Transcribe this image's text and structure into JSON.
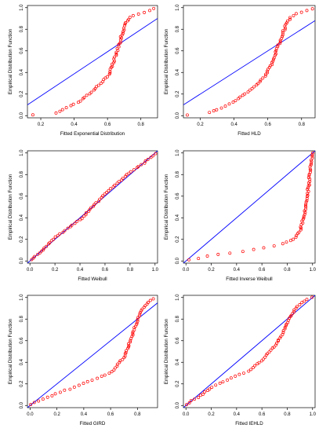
{
  "colors": {
    "points": "#ff0000",
    "line": "#0000ff",
    "axis": "#000000"
  },
  "chart_data": [
    {
      "type": "scatter",
      "xlabel": "Fitted Exponential Distribution",
      "ylabel": "Empirical Distribution Function",
      "xlim": [
        0.12,
        0.9
      ],
      "ylim": [
        -0.02,
        1.02
      ],
      "xticks": [
        0.2,
        0.4,
        0.6,
        0.8
      ],
      "xtick_labels": [
        "0.2",
        "0.4",
        "0.6",
        "0.8"
      ],
      "yticks": [
        0,
        0.2,
        0.4,
        0.6,
        0.8,
        1
      ],
      "ytick_labels": [
        "0.0",
        "0.2",
        "0.4",
        "0.6",
        "0.8",
        "1.0"
      ],
      "line": {
        "x": [
          0.12,
          0.9
        ],
        "y": [
          0.1,
          0.9
        ]
      },
      "curve": [
        [
          0.15,
          0.01
        ],
        [
          0.28,
          0.02
        ],
        [
          0.42,
          0.12
        ],
        [
          0.52,
          0.24
        ],
        [
          0.6,
          0.36
        ],
        [
          0.63,
          0.46
        ],
        [
          0.66,
          0.6
        ],
        [
          0.68,
          0.72
        ],
        [
          0.71,
          0.86
        ],
        [
          0.74,
          0.92
        ],
        [
          0.8,
          0.95
        ],
        [
          0.86,
          0.98
        ],
        [
          0.88,
          0.99
        ]
      ],
      "n_points": 62
    },
    {
      "type": "scatter",
      "xlabel": "Fitted HLD",
      "ylabel": "Empirical Distribution Function",
      "xlim": [
        0.1,
        0.88
      ],
      "ylim": [
        -0.02,
        1.02
      ],
      "xticks": [
        0.2,
        0.4,
        0.6,
        0.8
      ],
      "xtick_labels": [
        "0.2",
        "0.4",
        "0.6",
        "0.8"
      ],
      "yticks": [
        0,
        0.2,
        0.4,
        0.6,
        0.8,
        1
      ],
      "ytick_labels": [
        "0.0",
        "0.2",
        "0.4",
        "0.6",
        "0.8",
        "1.0"
      ],
      "line": {
        "x": [
          0.1,
          0.88
        ],
        "y": [
          0.1,
          0.88
        ]
      },
      "curve": [
        [
          0.12,
          0.01
        ],
        [
          0.25,
          0.02
        ],
        [
          0.4,
          0.13
        ],
        [
          0.5,
          0.24
        ],
        [
          0.58,
          0.36
        ],
        [
          0.62,
          0.46
        ],
        [
          0.65,
          0.6
        ],
        [
          0.68,
          0.72
        ],
        [
          0.71,
          0.86
        ],
        [
          0.74,
          0.92
        ],
        [
          0.78,
          0.95
        ],
        [
          0.84,
          0.98
        ],
        [
          0.87,
          0.99
        ]
      ],
      "n_points": 62
    },
    {
      "type": "scatter",
      "xlabel": "Fitted Weibull",
      "ylabel": "Empirical Distribution Function",
      "xlim": [
        -0.02,
        1.02
      ],
      "ylim": [
        -0.02,
        1.02
      ],
      "xticks": [
        0,
        0.2,
        0.4,
        0.6,
        0.8,
        1
      ],
      "xtick_labels": [
        "0.0",
        "0.2",
        "0.4",
        "0.6",
        "0.8",
        "1.0"
      ],
      "yticks": [
        0,
        0.2,
        0.4,
        0.6,
        0.8,
        1
      ],
      "ytick_labels": [
        "0.0",
        "0.2",
        "0.4",
        "0.6",
        "0.8",
        "1.0"
      ],
      "line": {
        "x": [
          -0.02,
          1.02
        ],
        "y": [
          -0.02,
          1.02
        ]
      },
      "curve": [
        [
          0.01,
          0.01
        ],
        [
          0.1,
          0.1
        ],
        [
          0.2,
          0.22
        ],
        [
          0.3,
          0.3
        ],
        [
          0.42,
          0.4
        ],
        [
          0.5,
          0.5
        ],
        [
          0.6,
          0.62
        ],
        [
          0.7,
          0.72
        ],
        [
          0.8,
          0.82
        ],
        [
          0.9,
          0.9
        ],
        [
          1.0,
          0.99
        ]
      ],
      "n_points": 62
    },
    {
      "type": "scatter",
      "xlabel": "Fitted Inverse Weibull",
      "ylabel": "Empirical Distribution Function",
      "xlim": [
        -0.02,
        1.02
      ],
      "ylim": [
        -0.02,
        1.02
      ],
      "xticks": [
        0,
        0.2,
        0.4,
        0.6,
        0.8,
        1
      ],
      "xtick_labels": [
        "0.0",
        "0.2",
        "0.4",
        "0.6",
        "0.8",
        "1.0"
      ],
      "yticks": [
        0,
        0.2,
        0.4,
        0.6,
        0.8,
        1
      ],
      "ytick_labels": [
        "0.0",
        "0.2",
        "0.4",
        "0.6",
        "0.8",
        "1.0"
      ],
      "line": {
        "x": [
          -0.02,
          1.02
        ],
        "y": [
          -0.02,
          1.02
        ]
      },
      "curve": [
        [
          0.02,
          0.01
        ],
        [
          0.2,
          0.05
        ],
        [
          0.5,
          0.1
        ],
        [
          0.75,
          0.15
        ],
        [
          0.85,
          0.2
        ],
        [
          0.9,
          0.28
        ],
        [
          0.93,
          0.4
        ],
        [
          0.95,
          0.55
        ],
        [
          0.97,
          0.7
        ],
        [
          0.98,
          0.85
        ],
        [
          1.0,
          1.0
        ]
      ],
      "n_points": 62
    },
    {
      "type": "scatter",
      "xlabel": "Fitted GIRD",
      "ylabel": "Empirical Distribution Function",
      "xlim": [
        -0.02,
        0.95
      ],
      "ylim": [
        -0.02,
        1.02
      ],
      "xticks": [
        0,
        0.2,
        0.4,
        0.6,
        0.8
      ],
      "xtick_labels": [
        "0.0",
        "0.2",
        "0.4",
        "0.6",
        "0.8"
      ],
      "yticks": [
        0,
        0.2,
        0.4,
        0.6,
        0.8,
        1
      ],
      "ytick_labels": [
        "0.0",
        "0.2",
        "0.4",
        "0.6",
        "0.8",
        "1.0"
      ],
      "line": {
        "x": [
          -0.02,
          0.95
        ],
        "y": [
          -0.02,
          0.95
        ]
      },
      "curve": [
        [
          0.0,
          0.01
        ],
        [
          0.1,
          0.06
        ],
        [
          0.2,
          0.11
        ],
        [
          0.35,
          0.18
        ],
        [
          0.5,
          0.25
        ],
        [
          0.62,
          0.32
        ],
        [
          0.7,
          0.45
        ],
        [
          0.74,
          0.58
        ],
        [
          0.78,
          0.72
        ],
        [
          0.82,
          0.86
        ],
        [
          0.88,
          0.96
        ],
        [
          0.92,
          0.99
        ]
      ],
      "n_points": 62
    },
    {
      "type": "scatter",
      "xlabel": "Fitted IEHLD",
      "ylabel": "Empirical Distribution Function",
      "xlim": [
        -0.02,
        1.02
      ],
      "ylim": [
        -0.02,
        1.02
      ],
      "xticks": [
        0,
        0.2,
        0.4,
        0.6,
        0.8,
        1
      ],
      "xtick_labels": [
        "0.0",
        "0.2",
        "0.4",
        "0.6",
        "0.8",
        "1.0"
      ],
      "yticks": [
        0,
        0.2,
        0.4,
        0.6,
        0.8,
        1
      ],
      "ytick_labels": [
        "0.0",
        "0.2",
        "0.4",
        "0.6",
        "0.8",
        "1.0"
      ],
      "line": {
        "x": [
          -0.02,
          1.02
        ],
        "y": [
          -0.02,
          1.02
        ]
      },
      "curve": [
        [
          0.0,
          0.01
        ],
        [
          0.1,
          0.08
        ],
        [
          0.2,
          0.17
        ],
        [
          0.35,
          0.25
        ],
        [
          0.5,
          0.32
        ],
        [
          0.6,
          0.42
        ],
        [
          0.7,
          0.55
        ],
        [
          0.78,
          0.7
        ],
        [
          0.82,
          0.82
        ],
        [
          0.88,
          0.92
        ],
        [
          0.95,
          0.98
        ],
        [
          1.0,
          1.0
        ]
      ],
      "n_points": 62
    }
  ]
}
